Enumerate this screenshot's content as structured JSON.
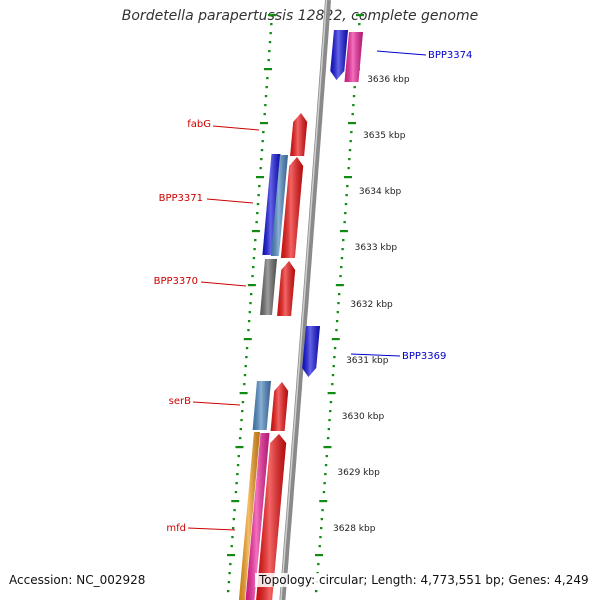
{
  "title": "Bordetella parapertussis 12822, complete genome",
  "footer": {
    "accession": "Accession: NC_002928",
    "summary": "Topology: circular; Length: 4,773,551 bp; Genes: 4,249"
  },
  "colors": {
    "red": "#ee1111",
    "blue": "#1111dd",
    "steelblue": "#4a86c0",
    "gray": "#6a6a6a",
    "magenta": "#ee2299",
    "orange": "#f19a1a",
    "tick": "#138a13",
    "label_red": "#cc0000",
    "label_blue": "#0000cc",
    "backbone": "#8a8a8a"
  },
  "kbp_labels": [
    "3636 kbp",
    "3635 kbp",
    "3634 kbp",
    "3633 kbp",
    "3632 kbp",
    "3631 kbp",
    "3630 kbp",
    "3629 kbp",
    "3628 kbp"
  ],
  "gene_labels": [
    {
      "text": "BPP3374",
      "color": "blue"
    },
    {
      "text": "fabG",
      "color": "red"
    },
    {
      "text": "BPP3371",
      "color": "red"
    },
    {
      "text": "BPP3370",
      "color": "red"
    },
    {
      "text": "BPP3369",
      "color": "blue"
    },
    {
      "text": "serB",
      "color": "red"
    },
    {
      "text": "mfd",
      "color": "red"
    }
  ]
}
